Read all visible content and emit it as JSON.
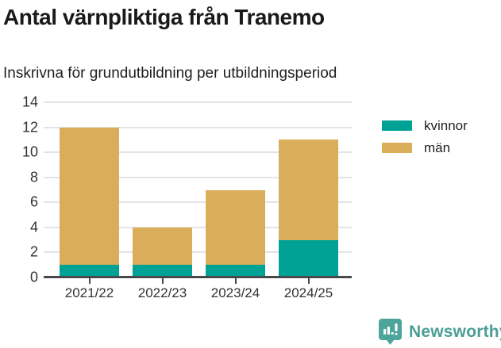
{
  "header": {
    "title": "Antal värnpliktiga från Tranemo",
    "subtitle": "Inskrivna för grundutbildning per utbildningsperiod"
  },
  "chart_data": {
    "type": "bar",
    "stacked": true,
    "categories": [
      "2021/22",
      "2022/23",
      "2023/24",
      "2024/25"
    ],
    "series": [
      {
        "name": "kvinnor",
        "color": "#00A296",
        "values": [
          1,
          1,
          1,
          3
        ]
      },
      {
        "name": "män",
        "color": "#D9AD5A",
        "values": [
          11,
          3,
          6,
          8
        ]
      }
    ],
    "totals": [
      12,
      4,
      7,
      11
    ],
    "title": "Antal värnpliktiga från Tranemo",
    "subtitle": "Inskrivna för grundutbildning per utbildningsperiod",
    "xlabel": "",
    "ylabel": "",
    "ylim": [
      0,
      14
    ],
    "yticks": [
      0,
      2,
      4,
      6,
      8,
      10,
      12,
      14
    ],
    "grid": "horizontal",
    "legend_position": "right-top",
    "gridline_color": "#e4e4e4",
    "axis_color": "#45494d"
  },
  "legend": {
    "items": [
      {
        "label": "kvinnor",
        "color": "#00A296"
      },
      {
        "label": "män",
        "color": "#D9AD5A"
      }
    ]
  },
  "footer": {
    "brand": "Newsworthy",
    "brand_color": "#4A9E96",
    "icon_color": "#4DA49B"
  }
}
